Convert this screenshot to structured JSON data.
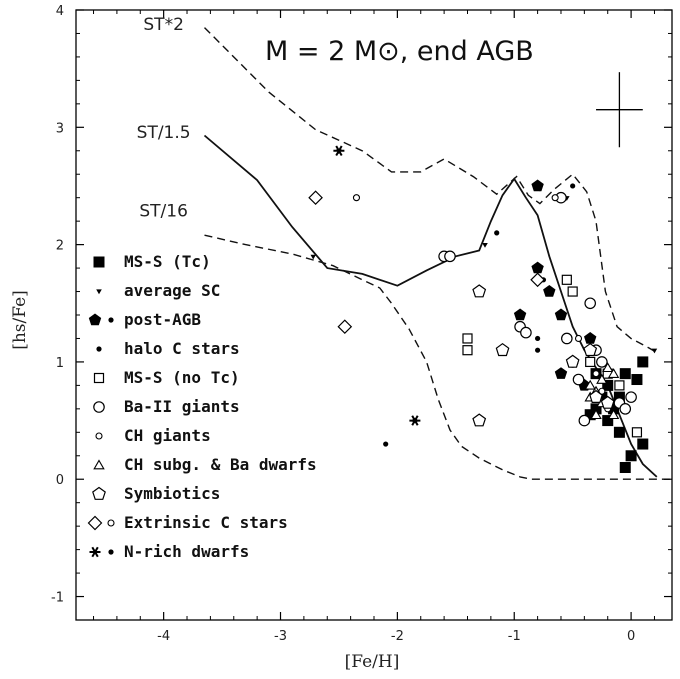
{
  "chart_data": {
    "type": "scatter",
    "title": "M = 2 M⊙, end AGB",
    "xlabel": "[Fe/H]",
    "ylabel": "[hs/Fe]",
    "xlim": [
      -4.75,
      0.35
    ],
    "ylim": [
      -1.2,
      4.0
    ],
    "xticks": [
      -4,
      -3,
      -2,
      -1,
      0
    ],
    "yticks": [
      -1,
      0,
      1,
      2,
      3,
      4
    ],
    "grid": false,
    "legend_position": "left",
    "curves": [
      {
        "name": "ST*2",
        "style": "dashed",
        "label_at": [
          -4.0,
          3.83
        ],
        "points": [
          [
            -3.65,
            3.85
          ],
          [
            -3.1,
            3.3
          ],
          [
            -2.7,
            2.98
          ],
          [
            -2.3,
            2.8
          ],
          [
            -2.05,
            2.62
          ],
          [
            -1.8,
            2.62
          ],
          [
            -1.6,
            2.73
          ],
          [
            -1.35,
            2.58
          ],
          [
            -1.15,
            2.43
          ],
          [
            -0.98,
            2.58
          ],
          [
            -0.88,
            2.42
          ],
          [
            -0.78,
            2.35
          ],
          [
            -0.66,
            2.47
          ],
          [
            -0.5,
            2.6
          ],
          [
            -0.38,
            2.45
          ],
          [
            -0.3,
            2.2
          ],
          [
            -0.22,
            1.6
          ],
          [
            -0.12,
            1.3
          ],
          [
            0.0,
            1.2
          ],
          [
            0.15,
            1.12
          ],
          [
            0.22,
            1.08
          ]
        ]
      },
      {
        "name": "ST/1.5",
        "style": "solid",
        "label_at": [
          -4.0,
          2.91
        ],
        "points": [
          [
            -3.65,
            2.93
          ],
          [
            -3.2,
            2.55
          ],
          [
            -2.9,
            2.15
          ],
          [
            -2.6,
            1.8
          ],
          [
            -2.3,
            1.75
          ],
          [
            -2.0,
            1.65
          ],
          [
            -1.75,
            1.78
          ],
          [
            -1.5,
            1.9
          ],
          [
            -1.3,
            1.95
          ],
          [
            -1.2,
            2.2
          ],
          [
            -1.1,
            2.42
          ],
          [
            -1.0,
            2.56
          ],
          [
            -0.9,
            2.4
          ],
          [
            -0.8,
            2.25
          ],
          [
            -0.7,
            1.9
          ],
          [
            -0.6,
            1.6
          ],
          [
            -0.5,
            1.3
          ],
          [
            -0.4,
            1.1
          ],
          [
            -0.3,
            0.95
          ],
          [
            -0.2,
            0.8
          ],
          [
            -0.1,
            0.55
          ],
          [
            0.0,
            0.3
          ],
          [
            0.1,
            0.13
          ],
          [
            0.22,
            0.02
          ]
        ]
      },
      {
        "name": "ST/16",
        "style": "dashed",
        "label_at": [
          -4.0,
          2.24
        ],
        "points": [
          [
            -3.65,
            2.08
          ],
          [
            -3.3,
            2.0
          ],
          [
            -2.9,
            1.92
          ],
          [
            -2.55,
            1.82
          ],
          [
            -2.3,
            1.7
          ],
          [
            -2.15,
            1.63
          ],
          [
            -2.05,
            1.5
          ],
          [
            -1.9,
            1.28
          ],
          [
            -1.75,
            1.0
          ],
          [
            -1.65,
            0.68
          ],
          [
            -1.55,
            0.42
          ],
          [
            -1.45,
            0.28
          ],
          [
            -1.3,
            0.18
          ],
          [
            -1.1,
            0.08
          ],
          [
            -0.95,
            0.02
          ],
          [
            -0.85,
            0.0
          ],
          [
            0.35,
            0.0
          ]
        ]
      }
    ],
    "error_bar": {
      "x": -0.1,
      "y": 3.15,
      "dx": 0.2,
      "dy": 0.32
    },
    "legend": [
      {
        "label": "MS-S (Tc)",
        "markers": [
          "filled-square"
        ]
      },
      {
        "label": "average SC",
        "markers": [
          "triangle-down-small"
        ]
      },
      {
        "label": "post-AGB",
        "markers": [
          "filled-pentagon",
          "small-dot"
        ]
      },
      {
        "label": "halo C stars",
        "markers": [
          "small-dot"
        ]
      },
      {
        "label": "MS-S (no Tc)",
        "markers": [
          "open-square"
        ]
      },
      {
        "label": "Ba-II giants",
        "markers": [
          "open-circle"
        ]
      },
      {
        "label": "CH giants",
        "markers": [
          "small-open-circle"
        ]
      },
      {
        "label": "CH subg. & Ba dwarfs",
        "markers": [
          "open-triangle"
        ]
      },
      {
        "label": "Symbiotics",
        "markers": [
          "open-pentagon"
        ]
      },
      {
        "label": "Extrinsic C stars",
        "markers": [
          "open-diamond",
          "small-open-circle"
        ]
      },
      {
        "label": "N-rich dwarfs",
        "markers": [
          "asterisk",
          "small-dot"
        ]
      }
    ],
    "series": [
      {
        "name": "MS-S (Tc)",
        "marker": "filled-square",
        "points": [
          [
            -0.05,
            0.1
          ],
          [
            0.0,
            0.2
          ],
          [
            -0.1,
            0.4
          ],
          [
            0.1,
            0.3
          ],
          [
            -0.2,
            0.5
          ],
          [
            -0.15,
            0.6
          ],
          [
            -0.25,
            0.7
          ],
          [
            -0.1,
            0.7
          ],
          [
            -0.3,
            0.6
          ],
          [
            0.05,
            0.85
          ],
          [
            -0.2,
            0.8
          ],
          [
            -0.3,
            0.9
          ],
          [
            -0.05,
            0.9
          ],
          [
            -0.35,
            0.55
          ],
          [
            0.1,
            1.0
          ]
        ]
      },
      {
        "name": "average SC",
        "marker": "triangle-down-small",
        "points": [
          [
            0.2,
            1.1
          ],
          [
            -0.55,
            2.4
          ],
          [
            -0.78,
            2.48
          ],
          [
            -1.25,
            2.0
          ],
          [
            -2.72,
            1.9
          ],
          [
            -2.5,
            2.8
          ]
        ]
      },
      {
        "name": "post-AGB",
        "marker": "filled-pentagon",
        "points": [
          [
            -0.8,
            2.5
          ],
          [
            -0.8,
            1.8
          ],
          [
            -0.7,
            1.6
          ],
          [
            -0.95,
            1.4
          ],
          [
            -0.6,
            1.4
          ],
          [
            -0.6,
            0.9
          ],
          [
            -0.4,
            0.8
          ],
          [
            -0.35,
            1.2
          ]
        ]
      },
      {
        "name": "halo C stars",
        "marker": "small-dot",
        "points": [
          [
            -1.15,
            2.1
          ],
          [
            -0.8,
            1.2
          ],
          [
            -0.75,
            1.7
          ],
          [
            -0.8,
            1.1
          ],
          [
            -2.1,
            0.3
          ],
          [
            -1.85,
            0.5
          ],
          [
            -0.5,
            2.5
          ]
        ]
      },
      {
        "name": "MS-S (no Tc)",
        "marker": "open-square",
        "points": [
          [
            -0.55,
            1.7
          ],
          [
            -1.4,
            1.2
          ],
          [
            -1.4,
            1.1
          ],
          [
            -0.5,
            1.6
          ],
          [
            -0.35,
            1.0
          ],
          [
            0.05,
            0.4
          ],
          [
            -0.2,
            0.9
          ],
          [
            -0.1,
            0.8
          ]
        ]
      },
      {
        "name": "Ba-II giants",
        "marker": "open-circle",
        "points": [
          [
            -1.6,
            1.9
          ],
          [
            -1.55,
            1.9
          ],
          [
            -0.95,
            1.3
          ],
          [
            -0.9,
            1.25
          ],
          [
            -0.6,
            2.4
          ],
          [
            -0.55,
            1.2
          ],
          [
            -0.5,
            1.0
          ],
          [
            -0.45,
            0.85
          ],
          [
            -0.35,
            1.5
          ],
          [
            -0.3,
            1.1
          ],
          [
            -0.25,
            1.0
          ],
          [
            -0.4,
            0.5
          ],
          [
            -0.1,
            0.65
          ],
          [
            0.0,
            0.7
          ],
          [
            -0.05,
            0.6
          ]
        ]
      },
      {
        "name": "CH giants",
        "marker": "small-open-circle",
        "points": [
          [
            -2.35,
            2.4
          ],
          [
            -0.65,
            2.4
          ],
          [
            -0.45,
            1.2
          ],
          [
            -0.3,
            0.9
          ],
          [
            -0.25,
            0.75
          ],
          [
            -0.2,
            0.6
          ]
        ]
      },
      {
        "name": "CH subg. & Ba dwarfs",
        "marker": "open-triangle",
        "points": [
          [
            -0.35,
            0.7
          ],
          [
            -0.3,
            0.75
          ],
          [
            -0.25,
            0.65
          ],
          [
            -0.3,
            0.55
          ],
          [
            -0.2,
            0.95
          ],
          [
            -0.15,
            0.9
          ],
          [
            -0.25,
            0.85
          ],
          [
            -0.35,
            0.8
          ],
          [
            -0.15,
            0.55
          ]
        ]
      },
      {
        "name": "Symbiotics",
        "marker": "open-pentagon",
        "points": [
          [
            -1.3,
            1.6
          ],
          [
            -1.3,
            0.5
          ],
          [
            -1.1,
            1.1
          ],
          [
            -0.5,
            1.0
          ],
          [
            -0.35,
            1.1
          ],
          [
            -0.3,
            0.7
          ],
          [
            -0.2,
            0.65
          ]
        ]
      },
      {
        "name": "Extrinsic C stars",
        "marker": "open-diamond",
        "points": [
          [
            -2.7,
            2.4
          ],
          [
            -2.45,
            1.3
          ],
          [
            -0.8,
            1.7
          ]
        ]
      },
      {
        "name": "N-rich dwarfs",
        "marker": "asterisk",
        "points": [
          [
            -1.85,
            0.5
          ],
          [
            -2.5,
            2.8
          ]
        ]
      }
    ]
  }
}
